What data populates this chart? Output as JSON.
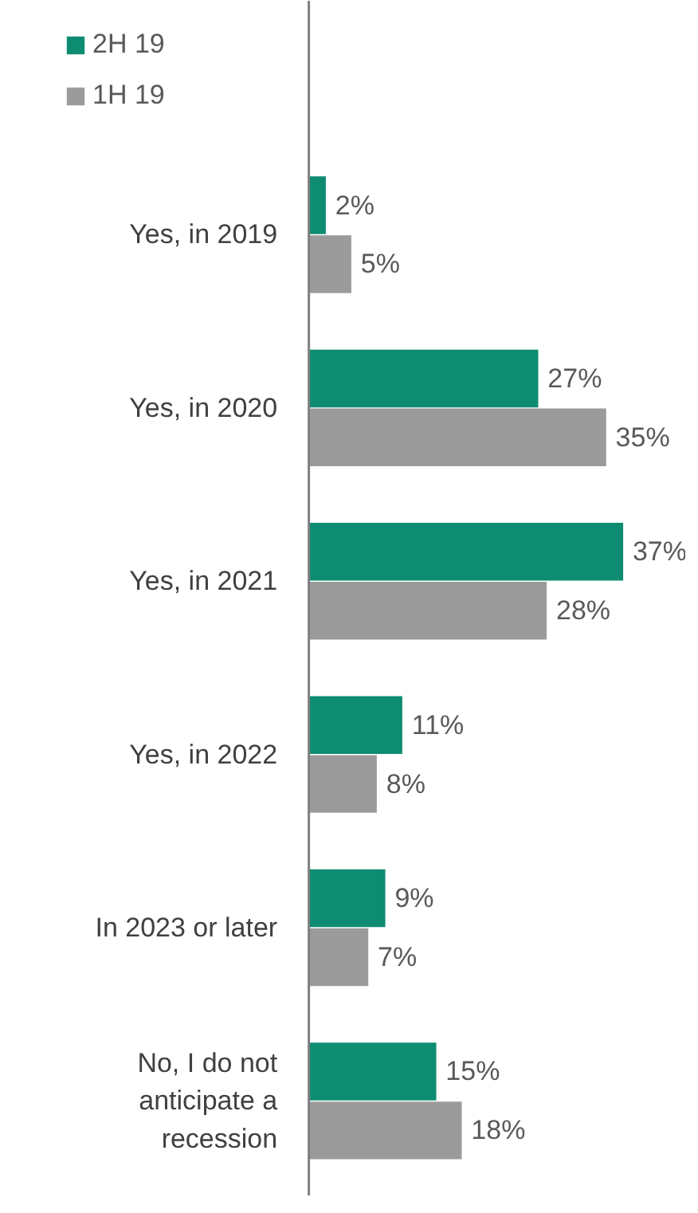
{
  "chart_data": {
    "type": "bar",
    "orientation": "horizontal",
    "categories": [
      "Yes, in 2019",
      "Yes, in 2020",
      "Yes, in 2021",
      "Yes, in 2022",
      "In 2023 or later",
      "No, I do not anticipate a recession"
    ],
    "series": [
      {
        "name": "2H 19",
        "color": "#0e8c72",
        "values": [
          2,
          27,
          37,
          11,
          9,
          15
        ],
        "value_labels": [
          "2%",
          "27%",
          "37%",
          "11%",
          "9%",
          "15%"
        ]
      },
      {
        "name": "1H 19",
        "color": "#9b9b9b",
        "values": [
          5,
          35,
          28,
          8,
          7,
          18
        ],
        "value_labels": [
          "5%",
          "35%",
          "28%",
          "8%",
          "7%",
          "18%"
        ]
      }
    ],
    "legend": "top left",
    "grid": false
  }
}
